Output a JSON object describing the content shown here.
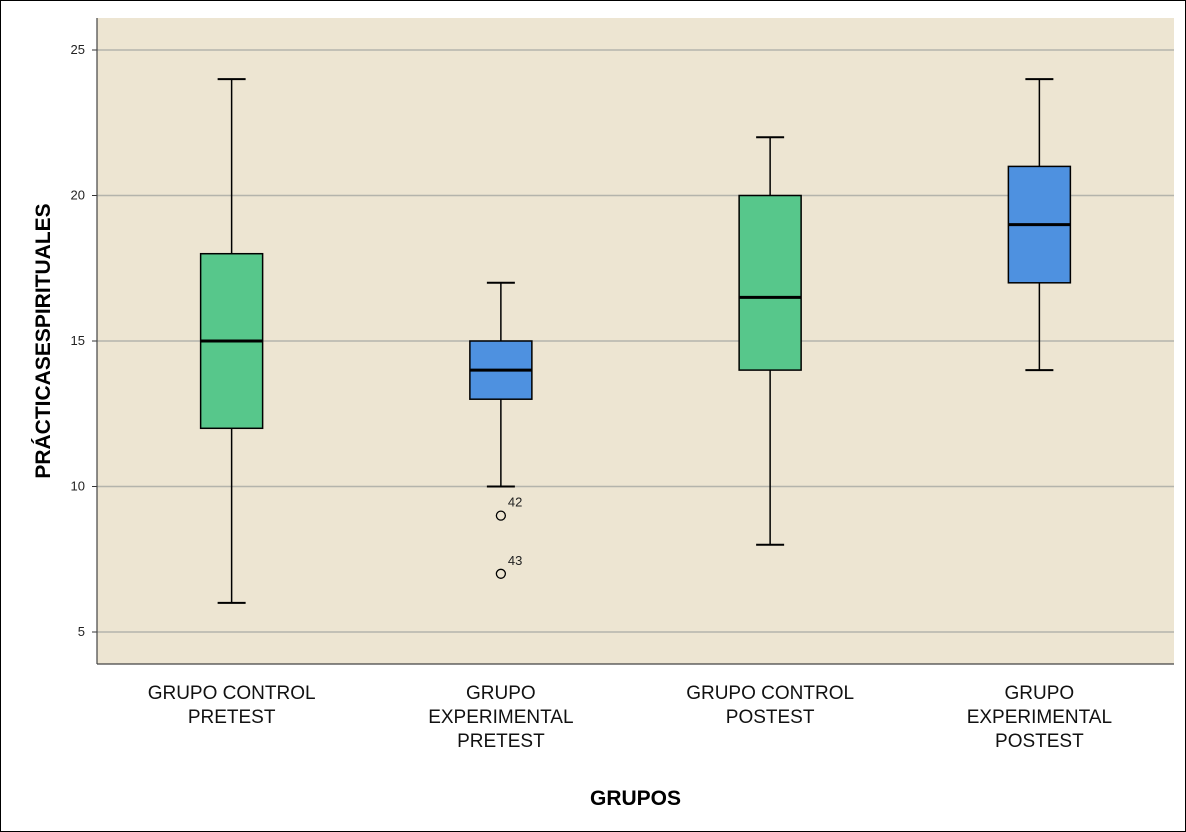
{
  "chart_data": {
    "type": "boxplot",
    "xlabel": "GRUPOS",
    "ylabel": "PRÁCTICASESPIRITUALES",
    "ylim": [
      3.9,
      26.1
    ],
    "yticks": [
      5,
      10,
      15,
      20,
      25
    ],
    "grid": "horizontal",
    "background_color": "#ede5d2",
    "categories": [
      [
        "GRUPO CONTROL",
        "PRETEST"
      ],
      [
        "GRUPO",
        "EXPERIMENTAL",
        "PRETEST"
      ],
      [
        "GRUPO CONTROL",
        "POSTEST"
      ],
      [
        "GRUPO",
        "EXPERIMENTAL",
        "POSTEST"
      ]
    ],
    "boxes": [
      {
        "whisker_low": 6,
        "q1": 12,
        "median": 15,
        "q3": 18,
        "whisker_high": 24,
        "color": "#57c78b",
        "outliers": []
      },
      {
        "whisker_low": 10,
        "q1": 13,
        "median": 14,
        "q3": 15,
        "whisker_high": 17,
        "color": "#4e91e0",
        "outliers": [
          {
            "value": 9,
            "label": "42"
          },
          {
            "value": 7,
            "label": "43"
          }
        ]
      },
      {
        "whisker_low": 8,
        "q1": 14,
        "median": 16.5,
        "q3": 20,
        "whisker_high": 22,
        "color": "#57c78b",
        "outliers": []
      },
      {
        "whisker_low": 14,
        "q1": 17,
        "median": 19,
        "q3": 21,
        "whisker_high": 24,
        "color": "#4e91e0",
        "outliers": []
      }
    ]
  }
}
